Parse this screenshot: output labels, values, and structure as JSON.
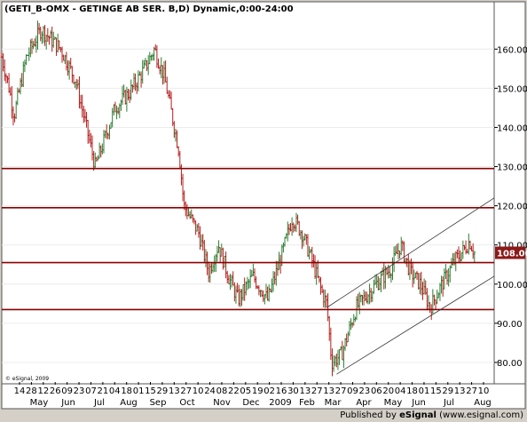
{
  "chart_data": {
    "type": "candlestick",
    "title": "(GETI_B-OMX - GETINGE AB SER. B,D) Dynamic,0:00-24:00",
    "y_ticks": [
      80,
      90,
      100,
      110,
      120,
      130,
      140,
      150,
      160
    ],
    "y_tick_labels": [
      "80.00",
      "90.00",
      "100.00",
      "110.00",
      "120.00",
      "130.00",
      "140.00",
      "150.00",
      "160.00"
    ],
    "ylim": [
      75,
      168
    ],
    "last_price_label": "108.00",
    "last_price": 108.0,
    "horizontal_lines": [
      129.5,
      119.5,
      105.5,
      93.5
    ],
    "channel": {
      "upper": [
        [
          0.66,
          94
        ],
        [
          1.0,
          122
        ]
      ],
      "lower": [
        [
          0.68,
          77
        ],
        [
          1.0,
          102
        ]
      ]
    },
    "x_day_labels": [
      "14",
      "28",
      "12",
      "26",
      "09",
      "23",
      "07",
      "21",
      "04",
      "18",
      "01",
      "15",
      "29",
      "13",
      "27",
      "10",
      "24",
      "08",
      "22",
      "05",
      "19",
      "02",
      "16",
      "30",
      "13",
      "27",
      "13",
      "27",
      "09",
      "23",
      "06",
      "20",
      "04",
      "18",
      "01",
      "15",
      "29",
      "13",
      "27",
      "10"
    ],
    "x_month_labels": [
      "May",
      "Jun",
      "Jul",
      "Aug",
      "Sep",
      "Oct",
      "Nov",
      "Dec",
      "2009",
      "Feb",
      "Mar",
      "Apr",
      "May",
      "Jun",
      "Jul",
      "Aug"
    ],
    "price_path": [
      [
        0,
        158
      ],
      [
        0.015,
        150
      ],
      [
        0.025,
        143
      ],
      [
        0.05,
        158
      ],
      [
        0.08,
        165
      ],
      [
        0.12,
        160
      ],
      [
        0.15,
        152
      ],
      [
        0.19,
        130
      ],
      [
        0.23,
        145
      ],
      [
        0.26,
        149
      ],
      [
        0.29,
        155
      ],
      [
        0.31,
        160
      ],
      [
        0.33,
        153
      ],
      [
        0.36,
        134
      ],
      [
        0.37,
        120
      ],
      [
        0.4,
        113
      ],
      [
        0.42,
        103
      ],
      [
        0.44,
        110
      ],
      [
        0.46,
        102
      ],
      [
        0.48,
        96
      ],
      [
        0.51,
        102
      ],
      [
        0.54,
        96
      ],
      [
        0.56,
        104
      ],
      [
        0.57,
        108
      ],
      [
        0.59,
        117
      ],
      [
        0.61,
        113
      ],
      [
        0.63,
        106
      ],
      [
        0.65,
        98
      ],
      [
        0.66,
        95
      ],
      [
        0.67,
        80
      ],
      [
        0.69,
        82
      ],
      [
        0.72,
        94
      ],
      [
        0.76,
        100
      ],
      [
        0.79,
        104
      ],
      [
        0.81,
        110
      ],
      [
        0.83,
        103
      ],
      [
        0.85,
        100
      ],
      [
        0.87,
        94
      ],
      [
        0.89,
        99
      ],
      [
        0.92,
        106
      ],
      [
        0.94,
        109
      ],
      [
        0.95,
        111
      ],
      [
        0.96,
        108
      ]
    ]
  },
  "footer": {
    "esignal_small": "© eSignal, 2009",
    "published_by": "Published by ",
    "brand": "eSignal",
    "url": " (www.esignal.com)"
  },
  "colors": {
    "background": "#ffffff",
    "up_bar": "#2e7d32",
    "down_bar": "#b71c1c",
    "level_lines": "#8b0000",
    "channel": "#333333"
  }
}
